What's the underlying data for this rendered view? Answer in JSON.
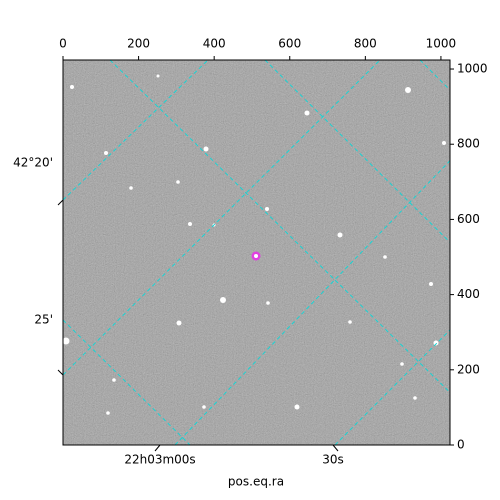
{
  "chart_data": {
    "type": "image",
    "xlabel": "pos.eq.ra",
    "xlim": [
      0,
      1024
    ],
    "xticks": [
      0,
      200,
      400,
      600,
      800,
      1000
    ],
    "ylim": [
      0,
      1024
    ],
    "yticks": [
      0,
      200,
      400,
      600,
      800,
      1000
    ],
    "ra_tick_labels": [
      "22h03m00s",
      "30s"
    ],
    "dec_tick_labels": [
      "42°20'",
      "25'"
    ]
  }
}
